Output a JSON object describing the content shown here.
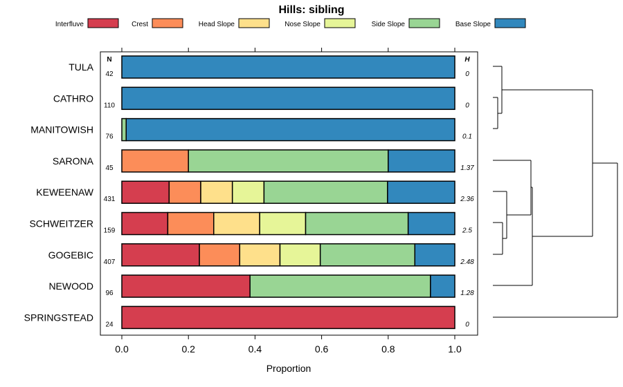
{
  "chart_data": {
    "type": "bar",
    "orientation": "horizontal",
    "stacked": true,
    "title": "Hills: sibling",
    "xlabel": "Proportion",
    "xlim": [
      0,
      1
    ],
    "x_ticks": [
      "0.0",
      "0.2",
      "0.4",
      "0.6",
      "0.8",
      "1.0"
    ],
    "n_header": "N",
    "h_header": "H",
    "legend_position": "top",
    "categories": [
      "TULA",
      "CATHRO",
      "MANITOWISH",
      "SARONA",
      "KEWEENAW",
      "SCHWEITZER",
      "GOGEBIC",
      "NEWOOD",
      "SPRINGSTEAD"
    ],
    "n_values": [
      "42",
      "110",
      "76",
      "45",
      "431",
      "159",
      "407",
      "96",
      "24"
    ],
    "h_values": [
      "0",
      "0",
      "0.1",
      "1.37",
      "2.36",
      "2.5",
      "2.48",
      "1.28",
      "0"
    ],
    "series": [
      {
        "name": "Interfluve",
        "color": "#d53e4f",
        "values": [
          0,
          0,
          0,
          0,
          0.142,
          0.138,
          0.233,
          0.385,
          1.0
        ]
      },
      {
        "name": "Crest",
        "color": "#fc8d59",
        "values": [
          0,
          0,
          0,
          0.2,
          0.095,
          0.138,
          0.121,
          0,
          0
        ]
      },
      {
        "name": "Head Slope",
        "color": "#fee08b",
        "values": [
          0,
          0,
          0,
          0,
          0.095,
          0.138,
          0.121,
          0,
          0
        ]
      },
      {
        "name": "Nose Slope",
        "color": "#e6f598",
        "values": [
          0,
          0,
          0,
          0,
          0.095,
          0.138,
          0.121,
          0,
          0
        ]
      },
      {
        "name": "Side Slope",
        "color": "#99d594",
        "values": [
          0,
          0,
          0.013,
          0.6,
          0.371,
          0.308,
          0.284,
          0.542,
          0
        ]
      },
      {
        "name": "Base Slope",
        "color": "#3288bd",
        "values": [
          1.0,
          1.0,
          0.987,
          0.2,
          0.202,
          0.14,
          0.12,
          0.073,
          0
        ]
      }
    ],
    "dendrogram": "hierarchical clustering of the 9 series, drawn to the right of the plot"
  }
}
